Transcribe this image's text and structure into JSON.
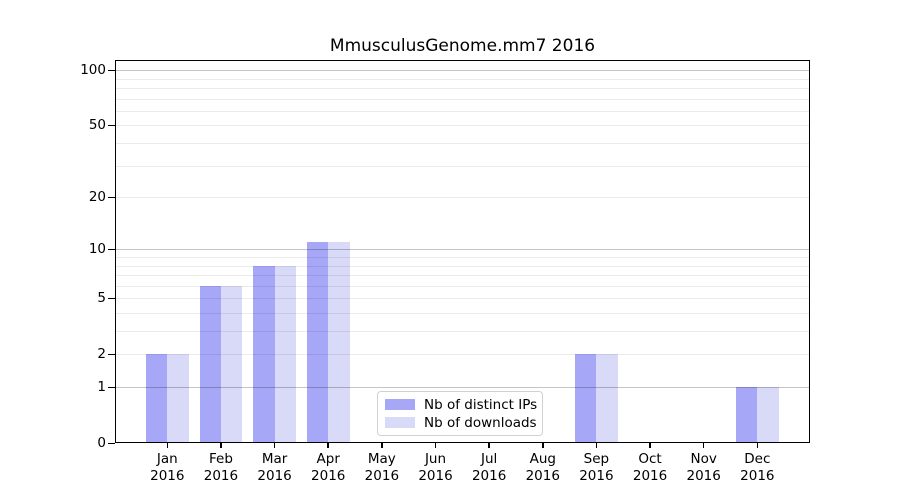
{
  "chart_data": {
    "type": "bar",
    "title": "MmusculusGenome.mm7 2016",
    "categories": [
      {
        "month": "Jan",
        "year": "2016"
      },
      {
        "month": "Feb",
        "year": "2016"
      },
      {
        "month": "Mar",
        "year": "2016"
      },
      {
        "month": "Apr",
        "year": "2016"
      },
      {
        "month": "May",
        "year": "2016"
      },
      {
        "month": "Jun",
        "year": "2016"
      },
      {
        "month": "Jul",
        "year": "2016"
      },
      {
        "month": "Aug",
        "year": "2016"
      },
      {
        "month": "Sep",
        "year": "2016"
      },
      {
        "month": "Oct",
        "year": "2016"
      },
      {
        "month": "Nov",
        "year": "2016"
      },
      {
        "month": "Dec",
        "year": "2016"
      }
    ],
    "series": [
      {
        "name": "Nb of distinct IPs",
        "color": "#a7a7f7",
        "values": [
          2,
          6,
          8,
          11,
          0,
          0,
          0,
          0,
          2,
          0,
          0,
          1
        ]
      },
      {
        "name": "Nb of downloads",
        "color": "#d9d9f8",
        "values": [
          2,
          6,
          8,
          11,
          0,
          0,
          0,
          0,
          2,
          0,
          0,
          1
        ]
      }
    ],
    "y_scale": "log1p",
    "y_ticks": [
      0,
      1,
      2,
      5,
      10,
      20,
      50,
      100
    ],
    "y_major_gridlines": [
      1,
      10,
      100
    ],
    "y_minor_gridlines": [
      2,
      3,
      4,
      5,
      6,
      7,
      8,
      9,
      20,
      30,
      40,
      50,
      60,
      70,
      80,
      90
    ],
    "ylim": [
      0,
      114
    ],
    "legend": {
      "position": "inside-bottom-center"
    },
    "colors": {
      "axis": "#000000",
      "major_grid": "#c6c6c6",
      "minor_grid": "#ececec",
      "background": "#ffffff",
      "text": "#000000"
    }
  }
}
